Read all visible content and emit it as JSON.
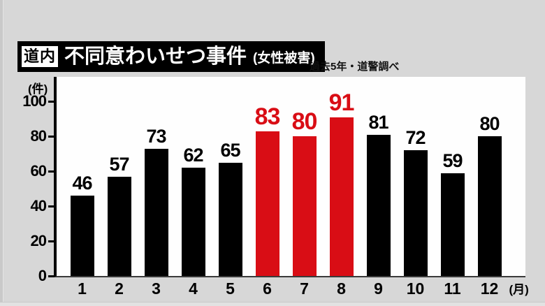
{
  "page": {
    "background_color": "#d7d7d7"
  },
  "header": {
    "region_badge": "道内",
    "title": "不同意わいせつ事件",
    "subtitle": "(女性被害)",
    "source_note": "過去5年・道警調べ"
  },
  "chart_data": {
    "type": "bar",
    "title": "道内 不同意わいせつ事件 (女性被害)",
    "source": "過去5年・道警調べ",
    "categories": [
      "1",
      "2",
      "3",
      "4",
      "5",
      "6",
      "7",
      "8",
      "9",
      "10",
      "11",
      "12"
    ],
    "values": [
      46,
      57,
      73,
      62,
      65,
      83,
      80,
      91,
      81,
      72,
      59,
      80
    ],
    "highlighted_categories": [
      "6",
      "7",
      "8"
    ],
    "value_labels_shown": true,
    "grid": false,
    "legend": "none",
    "bar_color": "#000000",
    "highlight_color": "#d90d15",
    "y_axis": {
      "unit_label": "(件)",
      "ticks": [
        0,
        20,
        40,
        60,
        80,
        100
      ],
      "ylim": [
        0,
        112
      ]
    },
    "x_axis": {
      "unit_label": "(月)"
    }
  }
}
